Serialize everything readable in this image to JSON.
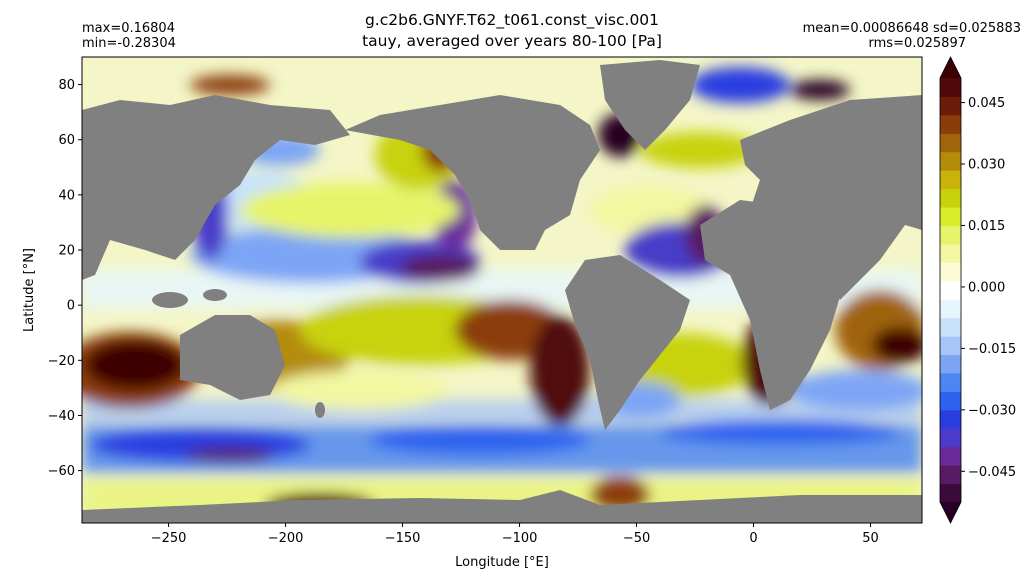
{
  "header": {
    "title_line1": "g.c2b6.GNYF.T62_t061.const_visc.001",
    "title_line2": "tauy, averaged over years 80-100 [Pa]",
    "max_text": "max=0.16804",
    "min_text": "min=-0.28304",
    "mean_sd_text": "mean=0.00086648 sd=0.025883",
    "rms_text": "rms=0.025897"
  },
  "chart_data": {
    "type": "heatmap",
    "title": "g.c2b6.GNYF.T62_t061.const_visc.001",
    "subtitle": "tauy, averaged over years 80-100 [Pa]",
    "xlabel": "Longitude [°E]",
    "ylabel": "Latitude [°N]",
    "xlim": [
      -287,
      72
    ],
    "ylim": [
      -79,
      90
    ],
    "x_ticks": [
      -250,
      -200,
      -150,
      -100,
      -50,
      0,
      50
    ],
    "y_ticks": [
      80,
      60,
      40,
      20,
      0,
      -20,
      -40,
      -60
    ],
    "x_tick_labels": [
      "−250",
      "−200",
      "−150",
      "−100",
      "−50",
      "0",
      "50"
    ],
    "y_tick_labels": [
      "80",
      "60",
      "40",
      "20",
      "0",
      "−20",
      "−40",
      "−60"
    ],
    "land_color": "#808080",
    "stats": {
      "max": 0.16804,
      "min": -0.28304,
      "mean": 0.00086648,
      "sd": 0.025883,
      "rms": 0.025897
    },
    "colorbar": {
      "levels": [
        -0.0525,
        -0.048,
        -0.0435,
        -0.039,
        -0.0345,
        -0.03,
        -0.0255,
        -0.021,
        -0.0165,
        -0.012,
        -0.0075,
        -0.003,
        0.0015,
        0.006,
        0.0105,
        0.015,
        0.0195,
        0.024,
        0.0285,
        0.033,
        0.0375,
        0.042,
        0.0465,
        0.051
      ],
      "colors": [
        "#3a0a3a",
        "#581a63",
        "#6a2b9a",
        "#4a3cc8",
        "#2a3ee0",
        "#2d62ee",
        "#4d86f2",
        "#7da5f5",
        "#a8c4f8",
        "#c8e2fb",
        "#e6f6fd",
        "#ffffff",
        "#fbfbd8",
        "#f2f7a0",
        "#e6f46a",
        "#d8ec2c",
        "#c8d20a",
        "#c8b30a",
        "#b48c0a",
        "#a0640a",
        "#8c3c0a",
        "#6e1c0a",
        "#500808"
      ],
      "under_color": "#260024",
      "over_color": "#3c0000",
      "ticks": [
        0.045,
        0.03,
        0.015,
        0.0,
        -0.015,
        -0.03,
        -0.045
      ],
      "tick_labels": [
        "0.045",
        "0.030",
        "0.015",
        "0.000",
        "−0.015",
        "−0.030",
        "−0.045"
      ]
    }
  }
}
